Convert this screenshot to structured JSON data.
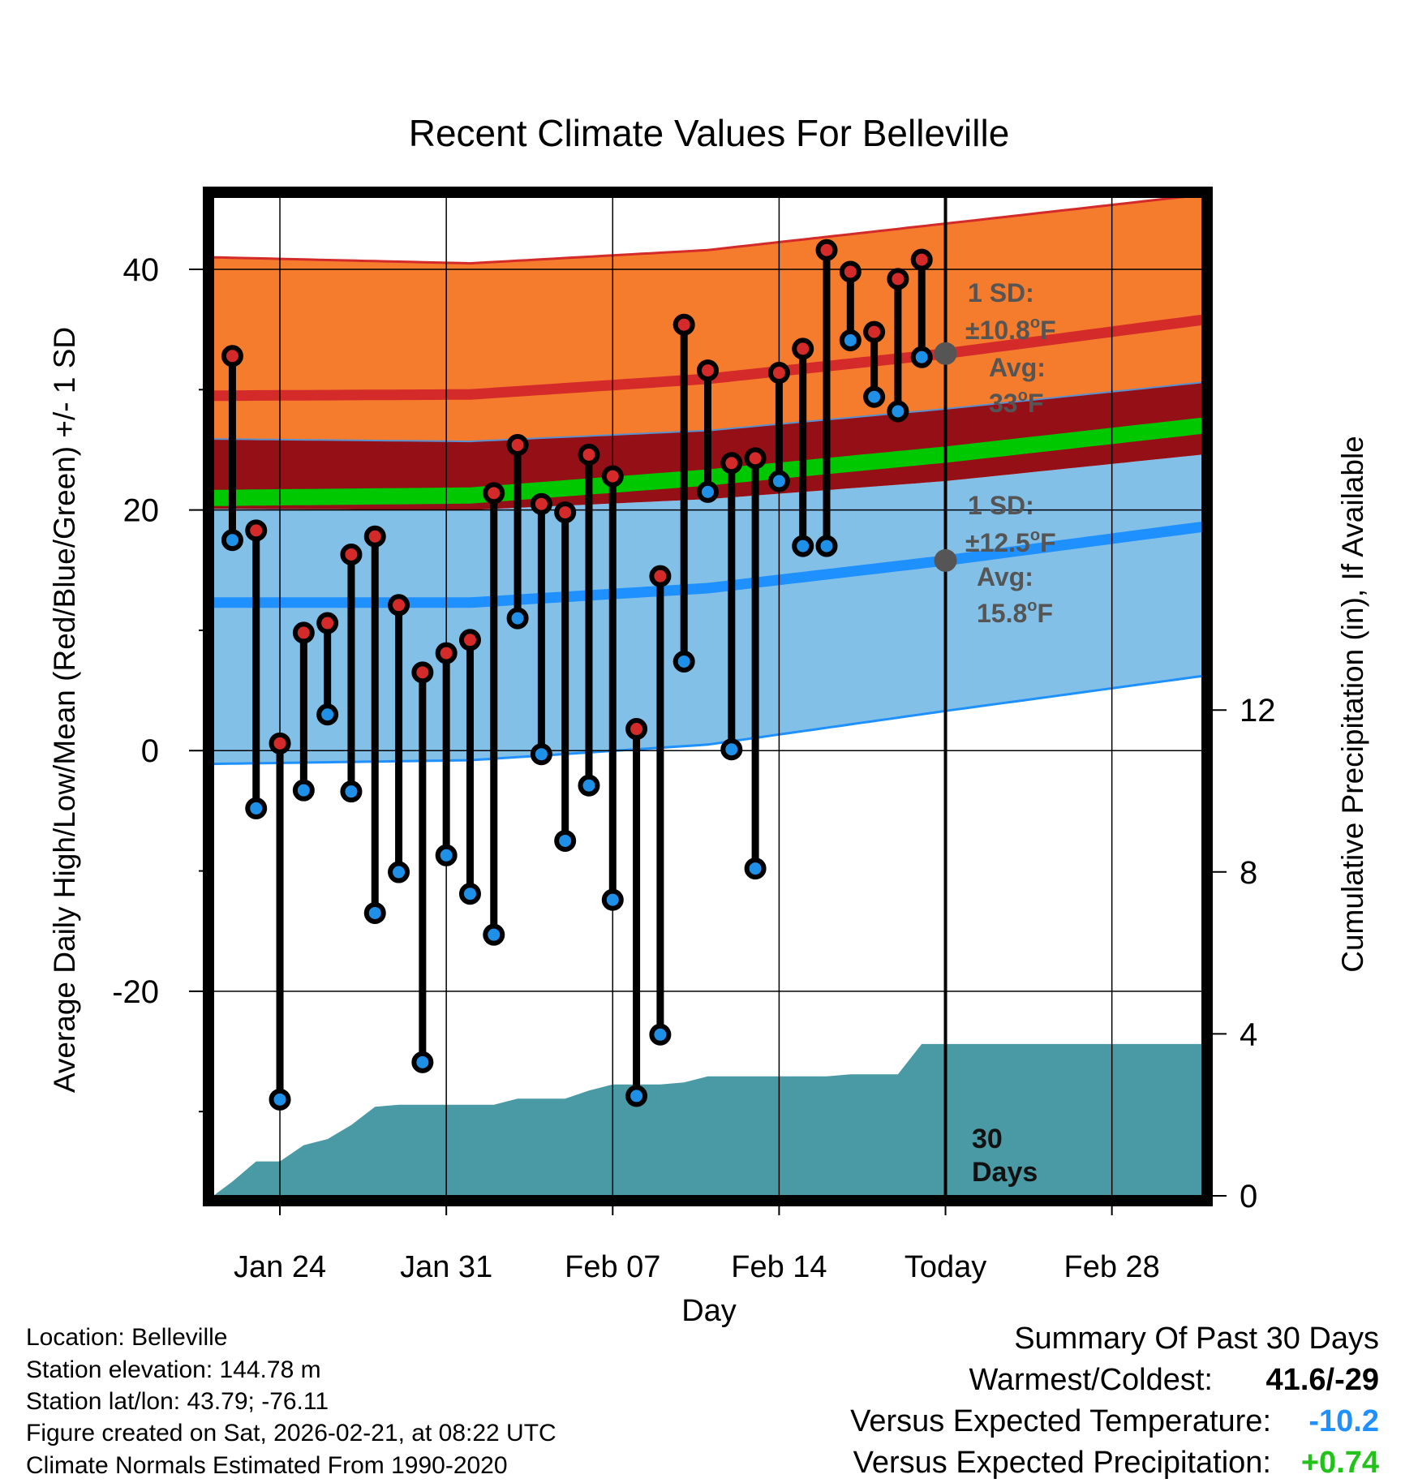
{
  "chart_data": {
    "type": "line",
    "title": "Recent Climate Values For Belleville",
    "xlabel": "Day",
    "ylabel": "Average Daily High/Low/Mean (Red/Blue/Green) +/- 1 SD",
    "ylabel_right": "Cumulative Precipitation (in), If Available",
    "x_day_range": [
      -30.8,
      10.8
    ],
    "ylim": [
      -37,
      46
    ],
    "ylim_right": [
      0,
      24.67
    ],
    "y_ticks": [
      40,
      20,
      0,
      -20
    ],
    "y_ticks_right": [
      12,
      8,
      4,
      0
    ],
    "x_ticks": [
      {
        "day": -28,
        "label": "Jan 24"
      },
      {
        "day": -21,
        "label": "Jan 31"
      },
      {
        "day": -14,
        "label": "Feb 07"
      },
      {
        "day": -7,
        "label": "Feb 14"
      },
      {
        "day": 0,
        "label": "Today"
      },
      {
        "day": 7,
        "label": "Feb 28"
      }
    ],
    "normals": {
      "days": [
        -30.8,
        -20,
        -10,
        0,
        10.8
      ],
      "high_avg": [
        29.5,
        29.6,
        30.9,
        33.0,
        35.8
      ],
      "high_upper": [
        41.0,
        40.5,
        41.6,
        43.8,
        46.2
      ],
      "high_lower": [
        25.9,
        25.7,
        26.6,
        28.4,
        30.6
      ],
      "mean_avg": [
        21.0,
        21.2,
        22.7,
        24.6,
        27.0
      ],
      "low_avg": [
        12.3,
        12.3,
        13.5,
        15.8,
        18.6
      ],
      "low_upper": [
        20.1,
        20.0,
        20.9,
        22.4,
        24.6
      ],
      "low_lower": [
        -1.1,
        -0.8,
        0.5,
        3.3,
        6.2
      ]
    },
    "series": [
      {
        "name": "Daily High",
        "color": "#d42a2a",
        "days": [
          -30,
          -29,
          -28,
          -27,
          -26,
          -25,
          -24,
          -23,
          -22,
          -21,
          -20,
          -19,
          -18,
          -17,
          -16,
          -15,
          -14,
          -13,
          -12,
          -11,
          -10,
          -9,
          -8,
          -7,
          -6,
          -5,
          -4,
          -3,
          -2,
          -1
        ],
        "values": [
          32.8,
          18.3,
          0.6,
          9.8,
          10.6,
          16.3,
          17.8,
          12.1,
          6.5,
          8.1,
          9.2,
          21.4,
          25.4,
          20.5,
          19.8,
          24.6,
          22.8,
          1.8,
          14.5,
          35.4,
          31.6,
          23.9,
          24.3,
          31.4,
          33.4,
          41.6,
          39.8,
          34.8,
          39.2,
          40.8
        ]
      },
      {
        "name": "Daily Low",
        "color": "#1e90e8",
        "days": [
          -30,
          -29,
          -28,
          -27,
          -26,
          -25,
          -24,
          -23,
          -22,
          -21,
          -20,
          -19,
          -18,
          -17,
          -16,
          -15,
          -14,
          -13,
          -12,
          -11,
          -10,
          -9,
          -8,
          -7,
          -6,
          -5,
          -4,
          -3,
          -2,
          -1
        ],
        "values": [
          17.5,
          -4.8,
          -29.0,
          -3.3,
          3.0,
          -3.4,
          -13.5,
          -10.1,
          -25.9,
          -8.7,
          -11.9,
          -15.3,
          11.0,
          -0.3,
          -7.5,
          -2.9,
          -12.4,
          -28.7,
          -23.6,
          7.4,
          21.5,
          0.1,
          -9.8,
          22.4,
          17.0,
          17.0,
          34.1,
          29.4,
          28.2,
          32.7
        ]
      }
    ],
    "precip_cumulative": {
      "days": [
        -30.8,
        -30,
        -29,
        -28,
        -27,
        -26,
        -25,
        -24,
        -23,
        -22,
        -21,
        -20,
        -19,
        -18,
        -17,
        -16,
        -15,
        -14,
        -13,
        -12,
        -11,
        -10,
        -9,
        -8,
        -7,
        -6,
        -5,
        -4,
        -3,
        -2,
        -1,
        0,
        1,
        10.8
      ],
      "values": [
        0,
        0.35,
        0.85,
        0.85,
        1.25,
        1.4,
        1.75,
        2.2,
        2.25,
        2.25,
        2.25,
        2.25,
        2.25,
        2.4,
        2.4,
        2.4,
        2.6,
        2.75,
        2.75,
        2.75,
        2.8,
        2.95,
        2.95,
        2.95,
        2.95,
        2.95,
        2.95,
        3.0,
        3.0,
        3.0,
        3.75,
        3.75,
        3.75,
        3.75
      ]
    },
    "annotations": {
      "high_sd_label": "1 SD:",
      "high_sd_value": "±10.8",
      "high_avg_label": "Avg:",
      "high_avg_value": "33",
      "low_sd_label": "1 SD:",
      "low_sd_value": "±12.5",
      "low_avg_label": "Avg:",
      "low_avg_value": "15.8",
      "degree_unit": "o",
      "temp_unit": "F",
      "days_number": "30",
      "days_word": "Days",
      "high_avg_marker": 33,
      "low_avg_marker": 15.8
    },
    "colors": {
      "high_band": "#f47c2c",
      "high_line": "#d42a2a",
      "overlap_band": "#951016",
      "mean_line": "#00c800",
      "low_band": "#82c0e8",
      "low_line": "#1e90ff",
      "precip": "#4a9aa5",
      "annotation": "#555555"
    }
  },
  "footer": {
    "location": "Location: Belleville",
    "elevation": "Station elevation: 144.78 m",
    "latlon": "Station lat/lon: 43.79; -76.11",
    "created": "Figure created on Sat, 2026-02-21, at 08:22 UTC",
    "normals": "Climate Normals Estimated From 1990-2020"
  },
  "summary": {
    "title": "Summary Of Past 30 Days",
    "warm_cold_label": "Warmest/Coldest:",
    "warm_cold_value": "41.6/-29",
    "temp_label": "Versus Expected Temperature:",
    "temp_value": "-10.2",
    "temp_color": "#1e90ff",
    "precip_label": "Versus Expected Precipitation:",
    "precip_value": "+0.74",
    "precip_color": "#22c21a"
  }
}
